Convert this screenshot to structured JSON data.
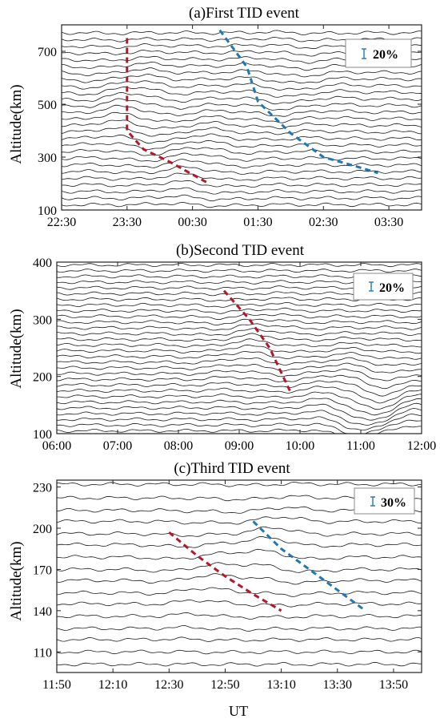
{
  "chart_data": [
    {
      "type": "line",
      "title": "(a)First TID event",
      "ylabel": "Altitude(km)",
      "xlabel": "",
      "xticks": [
        "22:30",
        "23:30",
        "00:30",
        "01:30",
        "02:30",
        "03:30"
      ],
      "x_start": "22:30",
      "x_end": "04:00",
      "ylim": [
        100,
        800
      ],
      "yticks": [
        100,
        300,
        500,
        700
      ],
      "scale": {
        "label": "20%",
        "color": "#1f77b4"
      },
      "trace_base_altitudes": [
        120,
        145,
        170,
        195,
        220,
        245,
        270,
        295,
        320,
        345,
        370,
        395,
        420,
        445,
        470,
        495,
        520,
        545,
        570,
        595,
        620,
        645,
        670,
        695,
        720,
        745,
        770
      ],
      "wave_centers": [
        {
          "t": "23:30",
          "alt": 500,
          "amp": 22
        },
        {
          "t": "00:30",
          "alt": 290,
          "amp": 18
        },
        {
          "t": "02:00",
          "alt": 560,
          "amp": -16
        }
      ],
      "series": [
        {
          "color": "#b5162a",
          "points": [
            [
              "23:30",
              750
            ],
            [
              "23:30",
              600
            ],
            [
              "23:30",
              400
            ],
            [
              "23:45",
              330
            ],
            [
              "00:10",
              280
            ],
            [
              "00:45",
              200
            ]
          ]
        },
        {
          "color": "#1f77b4",
          "points": [
            [
              "00:55",
              780
            ],
            [
              "01:20",
              640
            ],
            [
              "01:30",
              510
            ],
            [
              "02:00",
              390
            ],
            [
              "02:30",
              300
            ],
            [
              "03:00",
              265
            ],
            [
              "03:20",
              240
            ]
          ]
        }
      ]
    },
    {
      "type": "line",
      "title": "(b)Second TID event",
      "ylabel": "Altitude(km)",
      "xlabel": "",
      "xticks": [
        "06:00",
        "07:00",
        "08:00",
        "09:00",
        "10:00",
        "11:00",
        "12:00"
      ],
      "x_start": "06:00",
      "x_end": "12:00",
      "ylim": [
        100,
        400
      ],
      "yticks": [
        100,
        200,
        300,
        400
      ],
      "scale": {
        "label": "20%",
        "color": "#1f77b4"
      },
      "trace_base_altitudes": [
        105,
        115,
        125,
        135,
        145,
        155,
        165,
        175,
        185,
        195,
        205,
        215,
        225,
        235,
        245,
        255,
        265,
        275,
        285,
        295,
        305,
        315,
        325,
        335,
        345,
        355,
        365,
        375,
        385,
        395
      ],
      "wave_centers": [
        {
          "t": "09:10",
          "alt": 250,
          "amp": 8
        },
        {
          "t": "11:10",
          "alt": 150,
          "amp": -22
        }
      ],
      "series": [
        {
          "color": "#b5162a",
          "points": [
            [
              "08:45",
              350
            ],
            [
              "09:10",
              300
            ],
            [
              "09:30",
              250
            ],
            [
              "09:50",
              175
            ]
          ]
        }
      ]
    },
    {
      "type": "line",
      "title": "(c)Third TID event",
      "ylabel": "Altitude(km)",
      "xlabel": "UT",
      "xticks": [
        "11:50",
        "12:10",
        "12:30",
        "12:50",
        "13:10",
        "13:30",
        "13:50"
      ],
      "x_start": "11:50",
      "x_end": "14:00",
      "ylim": [
        95,
        235
      ],
      "yticks": [
        110,
        140,
        170,
        200,
        230
      ],
      "scale": {
        "label": "30%",
        "color": "#1f77b4"
      },
      "trace_base_altitudes": [
        101,
        110,
        119,
        127,
        136,
        145,
        153,
        162,
        170,
        179,
        188,
        196,
        205,
        213,
        222,
        232
      ],
      "wave_centers": [
        {
          "t": "12:45",
          "alt": 165,
          "amp": 4
        },
        {
          "t": "13:05",
          "alt": 185,
          "amp": 5
        }
      ],
      "series": [
        {
          "color": "#b5162a",
          "points": [
            [
              "12:30",
              197
            ],
            [
              "12:40",
              180
            ],
            [
              "12:50",
              165
            ],
            [
              "13:00",
              152
            ],
            [
              "13:10",
              140
            ]
          ]
        },
        {
          "color": "#1f77b4",
          "points": [
            [
              "13:00",
              205
            ],
            [
              "13:10",
              185
            ],
            [
              "13:20",
              170
            ],
            [
              "13:30",
              155
            ],
            [
              "13:40",
              140
            ]
          ]
        }
      ]
    }
  ]
}
